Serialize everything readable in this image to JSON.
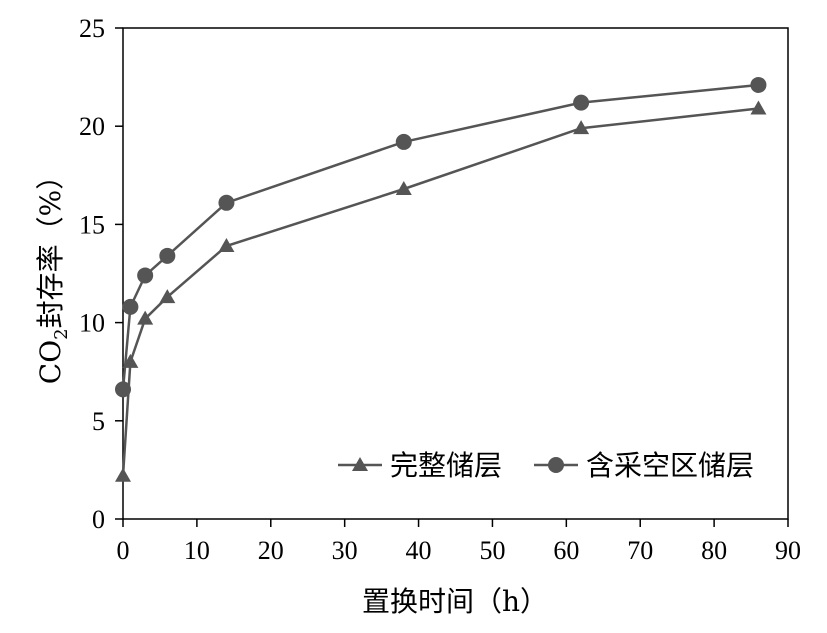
{
  "chart_data": {
    "type": "line",
    "xlabel": "置换时间（h）",
    "ylabel": {
      "pre": "CO",
      "sub": "2",
      "post": "封存率（%）"
    },
    "xlim": [
      0,
      90
    ],
    "ylim": [
      0,
      25
    ],
    "xticks": [
      0,
      10,
      20,
      30,
      40,
      50,
      60,
      70,
      80,
      90
    ],
    "yticks": [
      0,
      5,
      10,
      15,
      20,
      25
    ],
    "grid": false,
    "legend_position": "bottom-right",
    "series": [
      {
        "name": "完整储层",
        "marker": "triangle",
        "color": "#555555",
        "x": [
          0,
          1,
          3,
          6,
          14,
          38,
          62,
          86
        ],
        "y": [
          2.2,
          8.0,
          10.2,
          11.3,
          13.9,
          16.8,
          19.9,
          20.9
        ]
      },
      {
        "name": "含采空区储层",
        "marker": "circle",
        "color": "#555555",
        "x": [
          0,
          1,
          3,
          6,
          14,
          38,
          62,
          86
        ],
        "y": [
          6.6,
          10.8,
          12.4,
          13.4,
          16.1,
          19.2,
          21.2,
          22.1
        ]
      }
    ]
  }
}
